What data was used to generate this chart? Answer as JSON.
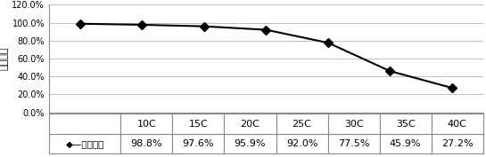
{
  "categories": [
    "10C",
    "15C",
    "20C",
    "25C",
    "30C",
    "35C",
    "40C"
  ],
  "values": [
    0.988,
    0.976,
    0.959,
    0.92,
    0.775,
    0.459,
    0.272
  ],
  "value_labels": [
    "98.8%",
    "97.6%",
    "95.9%",
    "92.0%",
    "77.5%",
    "45.9%",
    "27.2%"
  ],
  "legend_label": "放电能力",
  "ylabel": "放电能力",
  "ylim": [
    0.0,
    1.2
  ],
  "yticks": [
    0.0,
    0.2,
    0.4,
    0.6,
    0.8,
    1.0,
    1.2
  ],
  "ytick_labels": [
    "0.0%",
    "20.0%",
    "40.0%",
    "60.0%",
    "80.0%",
    "100.0%",
    "120.0%"
  ],
  "line_color": "#000000",
  "marker": "D",
  "marker_size": 5,
  "background_color": "#ffffff",
  "grid_color": "#bbbbbb",
  "table_border_color": "#888888",
  "row_label": "→放电能力",
  "legend_entry": "◆—放电能力"
}
